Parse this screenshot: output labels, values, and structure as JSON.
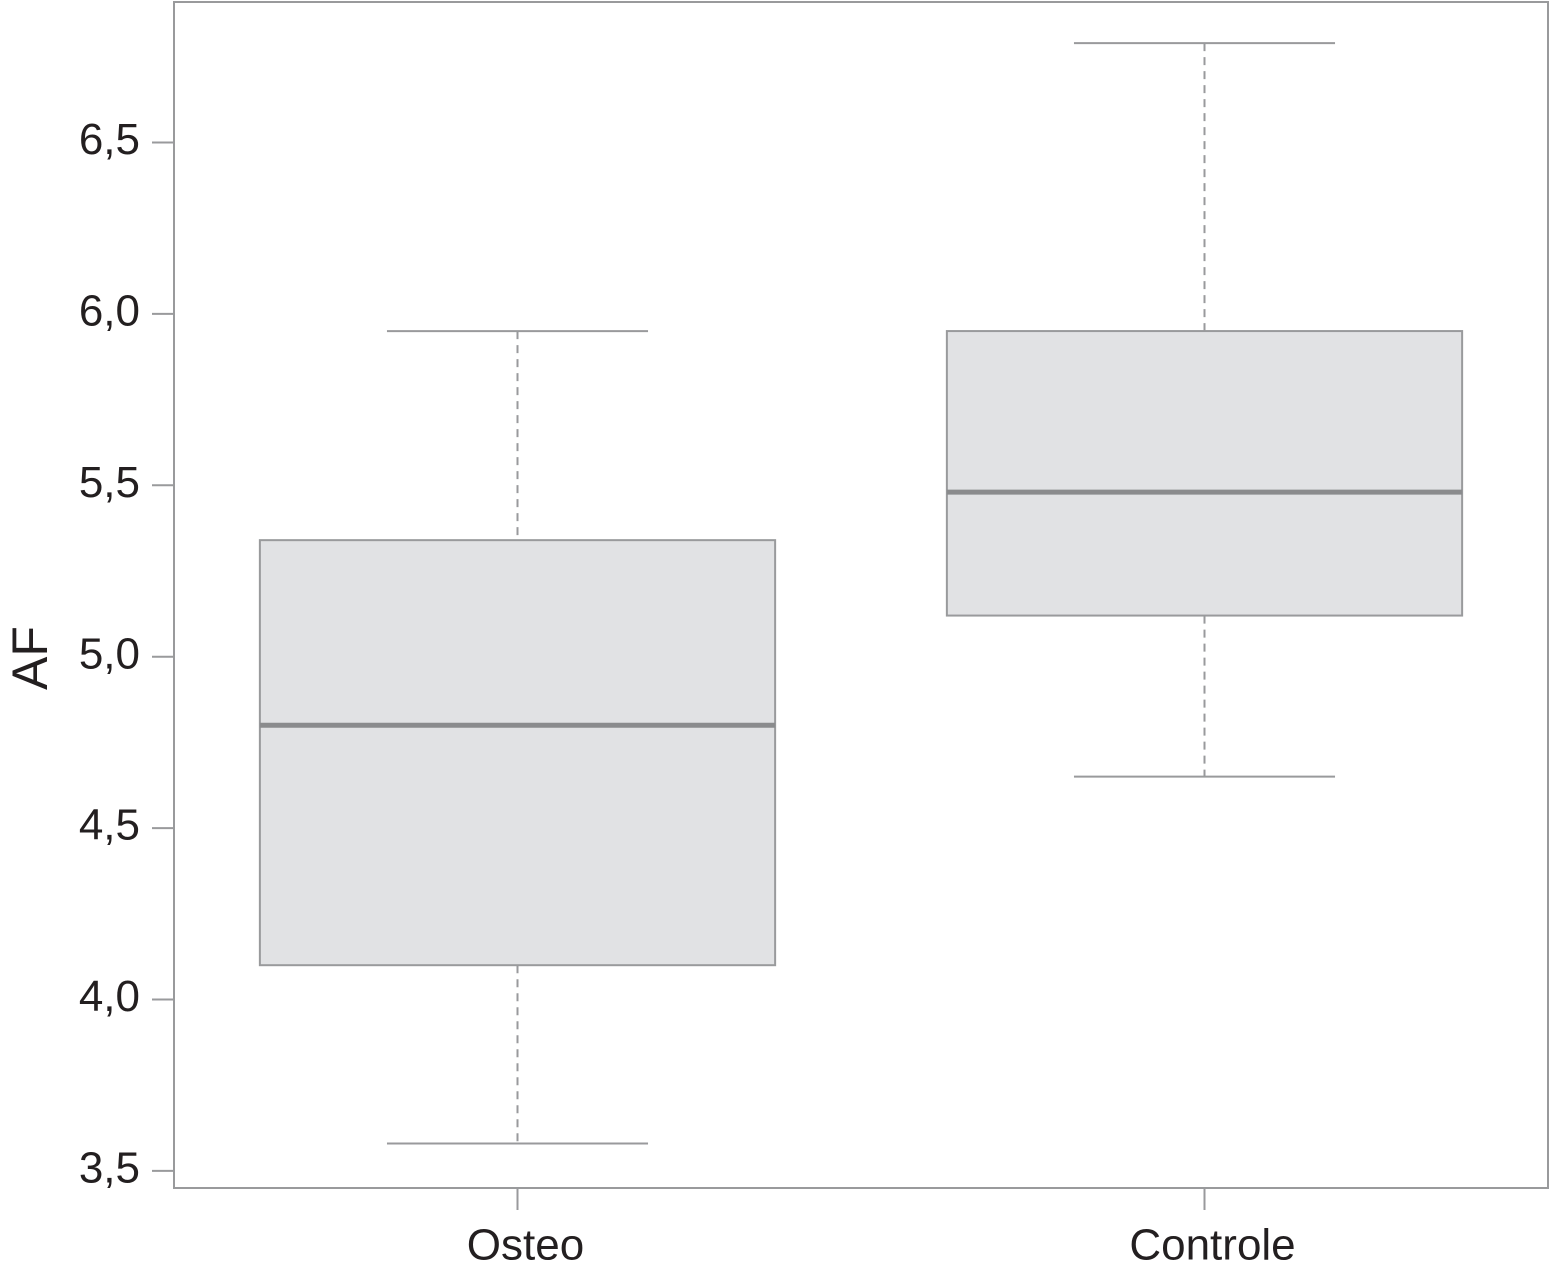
{
  "chart_data": {
    "type": "box",
    "y_label": "AF",
    "categories": [
      "Osteo",
      "Controle"
    ],
    "min": [
      3.58,
      4.65
    ],
    "q1": [
      4.1,
      5.12
    ],
    "median": [
      4.8,
      5.48
    ],
    "q3": [
      5.34,
      5.95
    ],
    "max": [
      5.95,
      6.79
    ],
    "ylim": [
      3.45,
      6.91
    ],
    "yticks": [
      {
        "value": 3.5,
        "label": "3,5"
      },
      {
        "value": 4.0,
        "label": "4,0"
      },
      {
        "value": 4.5,
        "label": "4,5"
      },
      {
        "value": 5.0,
        "label": "5,0"
      },
      {
        "value": 5.5,
        "label": "5,5"
      },
      {
        "value": 6.0,
        "label": "6,0"
      },
      {
        "value": 6.5,
        "label": "6,5"
      }
    ],
    "box_color": "#e1e2e4",
    "line_color": "#999a9c",
    "median_color": "#8a8b8d"
  }
}
